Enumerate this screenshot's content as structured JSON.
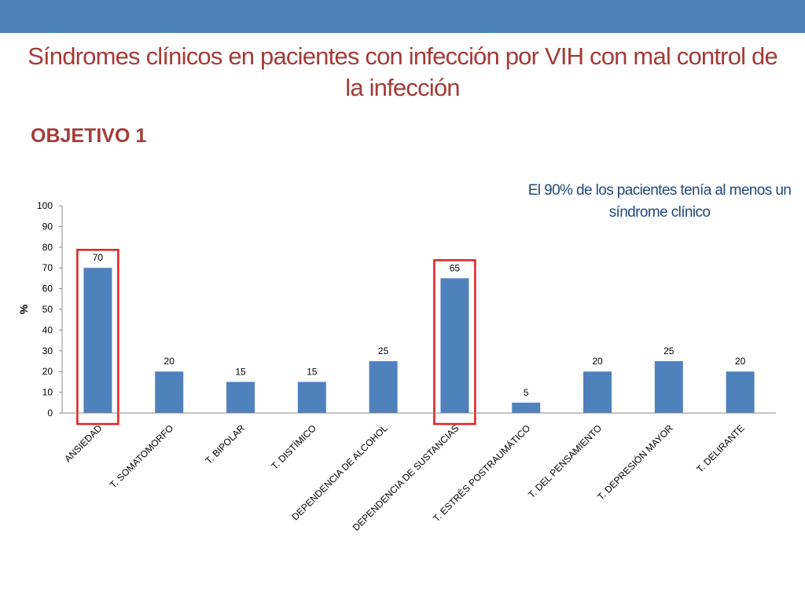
{
  "slide": {
    "title": "Síndromes clínicos en pacientes con infección por VIH con mal control de la infección",
    "subtitle": "OBJETIVO 1",
    "callout": "El 90% de los pacientes tenía al menos un síndrome clínico"
  },
  "colors": {
    "top_bar": "#4f81bd",
    "title": "#a33b37",
    "subtitle": "#a33b37",
    "callout": "#1f497d",
    "bar": "#4f81bd",
    "highlight": "#e02020",
    "axis": "#888888",
    "text": "#000000"
  },
  "chart_data": {
    "type": "bar",
    "ylabel": "%",
    "ylim": [
      0,
      100
    ],
    "yticks": [
      0,
      10,
      20,
      30,
      40,
      50,
      60,
      70,
      80,
      90,
      100
    ],
    "grid": false,
    "categories": [
      "ANSIEDAD",
      "T. SOMATOMORFO",
      "T. BIPOLAR",
      "T. DISTÍMICO",
      "DEPENDENCIA DE ALCOHOL",
      "DEPENDENCIA DE SUSTANCIAS",
      "T. ESTRÉS POSTRAUMÁTICO",
      "T. DEL PENSAMIENTO",
      "T. DEPRESIÓN MAYOR",
      "T. DELIRANTE"
    ],
    "values": [
      70,
      20,
      15,
      15,
      25,
      65,
      5,
      20,
      25,
      20
    ],
    "highlighted": [
      "ANSIEDAD",
      "DEPENDENCIA DE SUSTANCIAS"
    ]
  }
}
